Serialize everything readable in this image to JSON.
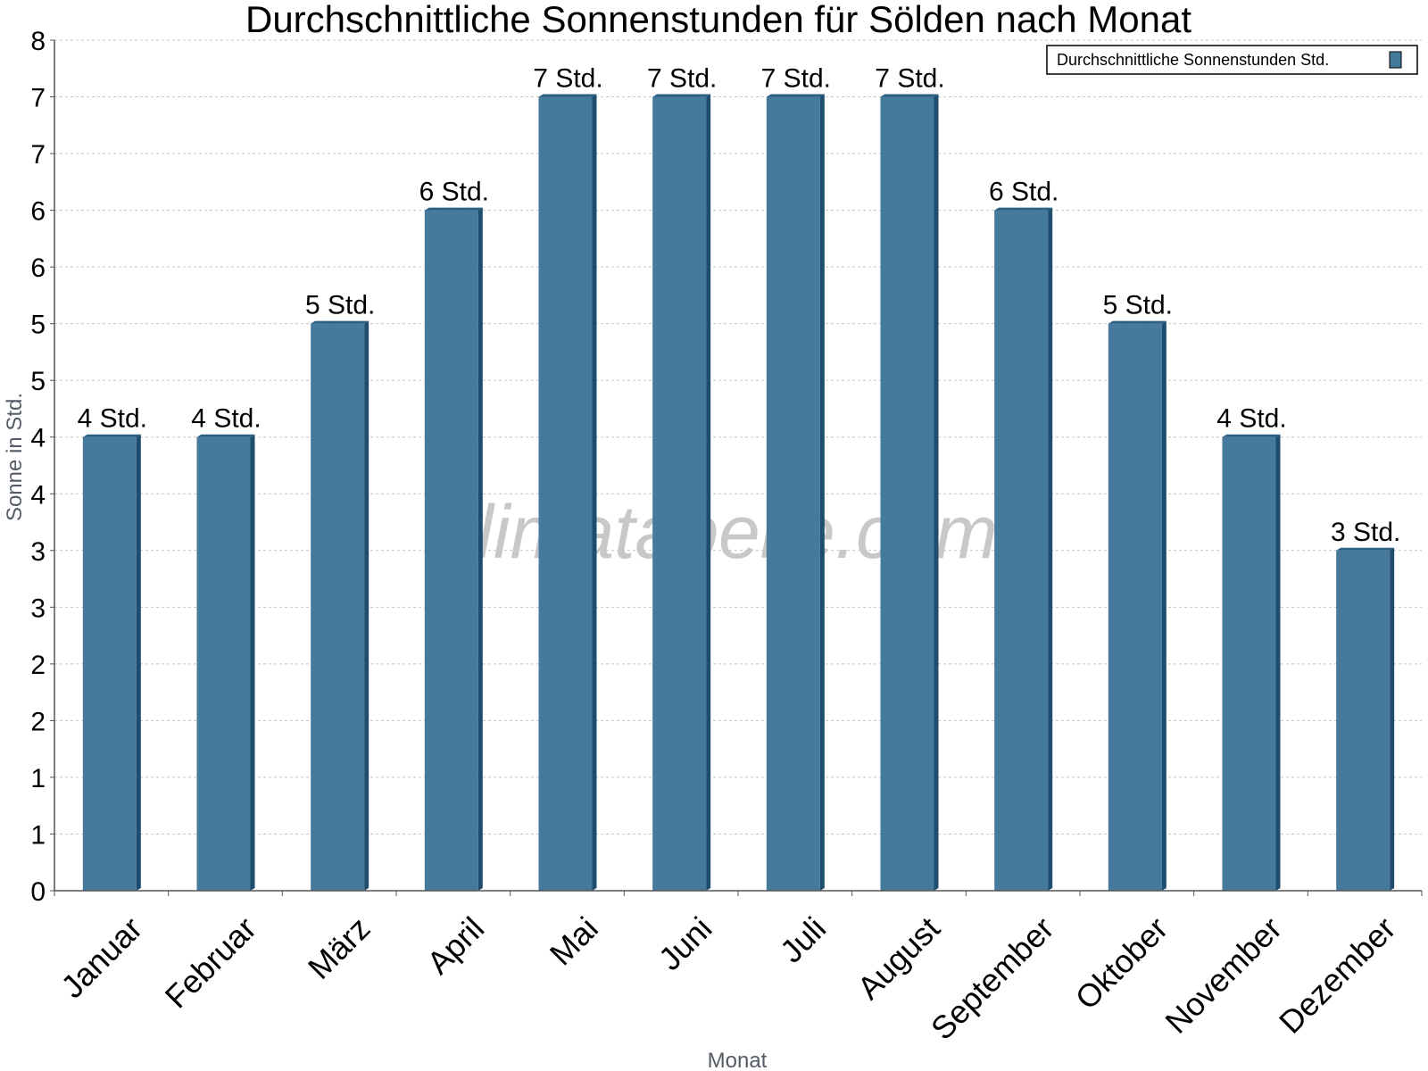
{
  "chart_data": {
    "type": "bar",
    "title": "Durchschnittliche Sonnenstunden für Sölden nach Monat",
    "xlabel": "Monat",
    "ylabel": "Sonne in Std.",
    "categories": [
      "Januar",
      "Februar",
      "März",
      "April",
      "Mai",
      "Juni",
      "Juli",
      "August",
      "September",
      "Oktober",
      "November",
      "Dezember"
    ],
    "series": [
      {
        "name": "Durchschnittliche Sonnenstunden Std.",
        "values": [
          4,
          4,
          5,
          6,
          7,
          7,
          7,
          7,
          6,
          5,
          4,
          3
        ],
        "labels": [
          "4 Std.",
          "4 Std.",
          "5 Std.",
          "6 Std.",
          "7 Std.",
          "7 Std.",
          "7 Std.",
          "7 Std.",
          "6 Std.",
          "5 Std.",
          "4 Std.",
          "3 Std."
        ]
      }
    ],
    "ylim": [
      0,
      7.5
    ],
    "yticks": [
      0,
      0.5,
      1,
      1.5,
      2,
      2.5,
      3,
      3.5,
      4,
      4.5,
      5,
      5.5,
      6,
      6.5,
      7,
      7.5
    ],
    "ytick_labels": [
      "0",
      "1",
      "1",
      "2",
      "2",
      "3",
      "3",
      "4",
      "4",
      "5",
      "5",
      "6",
      "6",
      "7",
      "7",
      "8"
    ],
    "grid": true,
    "legend_position": "top-right",
    "watermark": "klimatabelle.com",
    "colors": {
      "bar": "#467a9c",
      "bar_side": "#1e4d6e",
      "bar_top": "#2d5f82"
    }
  }
}
